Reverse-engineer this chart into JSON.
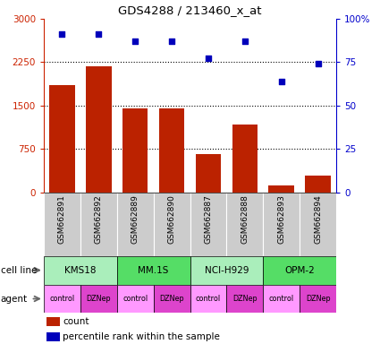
{
  "title": "GDS4288 / 213460_x_at",
  "samples": [
    "GSM662891",
    "GSM662892",
    "GSM662889",
    "GSM662890",
    "GSM662887",
    "GSM662888",
    "GSM662893",
    "GSM662894"
  ],
  "counts": [
    1850,
    2180,
    1450,
    1450,
    660,
    1170,
    125,
    295
  ],
  "percentiles": [
    91,
    91,
    87,
    87,
    77,
    87,
    64,
    74
  ],
  "cell_lines": [
    {
      "label": "KMS18",
      "start": 0,
      "end": 2
    },
    {
      "label": "MM.1S",
      "start": 2,
      "end": 4
    },
    {
      "label": "NCI-H929",
      "start": 4,
      "end": 6
    },
    {
      "label": "OPM-2",
      "start": 6,
      "end": 8
    }
  ],
  "agents": [
    "control",
    "DZNep",
    "control",
    "DZNep",
    "control",
    "DZNep",
    "control",
    "DZNep"
  ],
  "bar_color": "#bb2200",
  "dot_color": "#0000bb",
  "left_ylim": [
    0,
    3000
  ],
  "left_yticks": [
    0,
    750,
    1500,
    2250,
    3000
  ],
  "right_ylim": [
    0,
    100
  ],
  "right_yticks": [
    0,
    25,
    50,
    75,
    100
  ],
  "cell_line_colors_even": "#aaeebb",
  "cell_line_colors_odd": "#55dd66",
  "agent_color_control": "#ff99ff",
  "agent_color_dznep": "#dd44cc",
  "sample_bg_color": "#cccccc",
  "title_color": "#000000",
  "left_axis_color": "#cc2200",
  "right_axis_color": "#0000cc",
  "grid_color": "#000000"
}
